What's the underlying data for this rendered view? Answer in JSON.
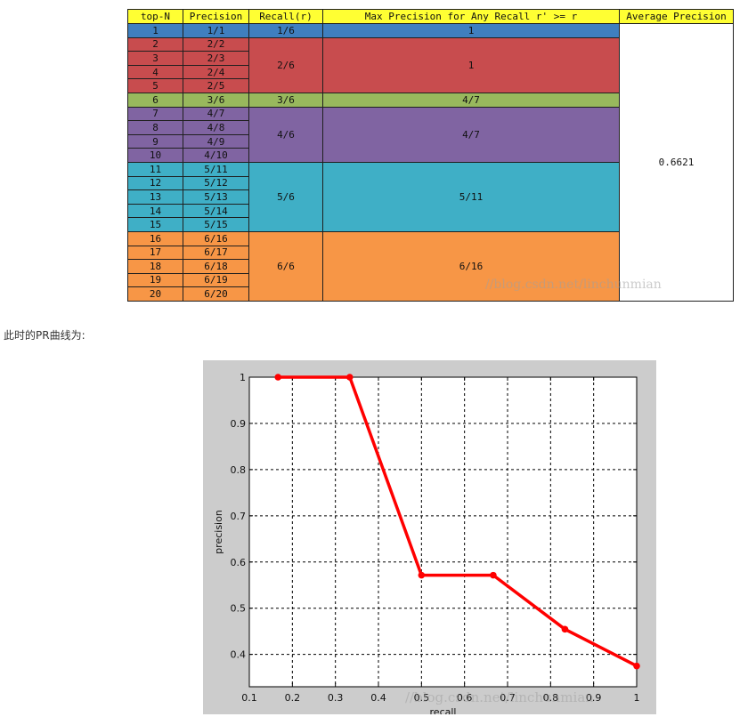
{
  "table": {
    "headers": [
      "top-N",
      "Precision",
      "Recall(r)",
      "Max Precision for Any Recall r' >= r",
      "Average Precision"
    ],
    "rows": [
      {
        "n": "1",
        "p": "1/1"
      },
      {
        "n": "2",
        "p": "2/2"
      },
      {
        "n": "3",
        "p": "2/3"
      },
      {
        "n": "4",
        "p": "2/4"
      },
      {
        "n": "5",
        "p": "2/5"
      },
      {
        "n": "6",
        "p": "3/6"
      },
      {
        "n": "7",
        "p": "4/7"
      },
      {
        "n": "8",
        "p": "4/8"
      },
      {
        "n": "9",
        "p": "4/9"
      },
      {
        "n": "10",
        "p": "4/10"
      },
      {
        "n": "11",
        "p": "5/11"
      },
      {
        "n": "12",
        "p": "5/12"
      },
      {
        "n": "13",
        "p": "5/13"
      },
      {
        "n": "14",
        "p": "5/14"
      },
      {
        "n": "15",
        "p": "5/15"
      },
      {
        "n": "16",
        "p": "6/16"
      },
      {
        "n": "17",
        "p": "6/17"
      },
      {
        "n": "18",
        "p": "6/18"
      },
      {
        "n": "19",
        "p": "6/19"
      },
      {
        "n": "20",
        "p": "6/20"
      }
    ],
    "groups": [
      {
        "recall": "1/6",
        "max_precision": "1",
        "rows": 1,
        "color": "#3f7fbf"
      },
      {
        "recall": "2/6",
        "max_precision": "1",
        "rows": 4,
        "color": "#c84c4e"
      },
      {
        "recall": "3/6",
        "max_precision": "4/7",
        "rows": 1,
        "color": "#98b85d"
      },
      {
        "recall": "4/6",
        "max_precision": "4/7",
        "rows": 4,
        "color": "#8064a2"
      },
      {
        "recall": "5/6",
        "max_precision": "5/11",
        "rows": 5,
        "color": "#3fafc6"
      },
      {
        "recall": "6/6",
        "max_precision": "6/16",
        "rows": 5,
        "color": "#f79646"
      }
    ],
    "average_precision": "0.6621",
    "watermark": "//blog.csdn.net/linchunmian"
  },
  "caption": "此时的PR曲线为:",
  "chart_data": {
    "type": "line",
    "xlabel": "recall",
    "ylabel": "precision",
    "xlim": [
      0.1,
      1.0
    ],
    "ylim": [
      0.33,
      1.0
    ],
    "x_ticks": [
      "0.1",
      "0.2",
      "0.3",
      "0.4",
      "0.5",
      "0.6",
      "0.7",
      "0.8",
      "0.9",
      "1"
    ],
    "y_ticks": [
      "1",
      "0.9",
      "0.8",
      "0.7",
      "0.6",
      "0.5",
      "0.4"
    ],
    "grid": true,
    "series": [
      {
        "color": "#ff0000",
        "x": [
          0.1667,
          0.3333,
          0.5,
          0.6667,
          0.8333,
          1.0
        ],
        "y": [
          1.0,
          1.0,
          0.5714,
          0.5714,
          0.4545,
          0.375
        ]
      }
    ],
    "watermark": "//blog.csdn.net/linchunmian"
  }
}
